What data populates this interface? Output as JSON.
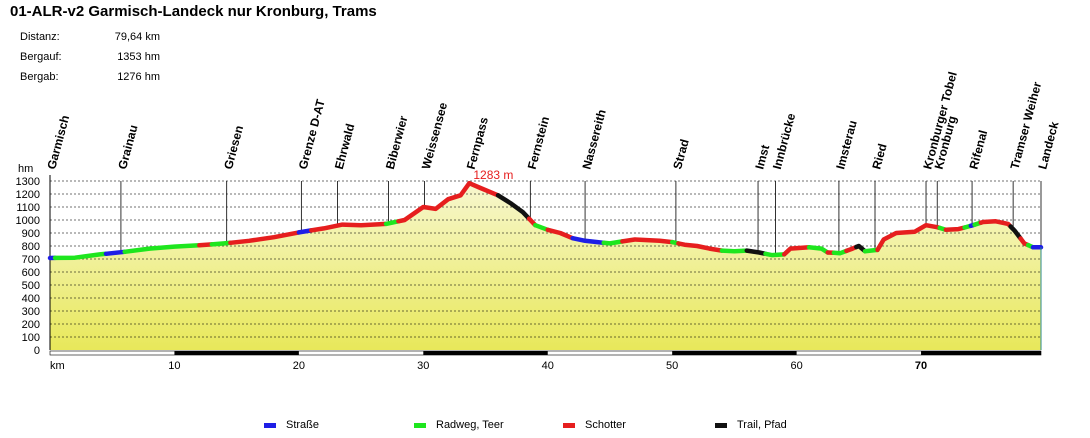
{
  "title": "01-ALR-v2 Garmisch-Landeck nur Kronburg, Trams",
  "stats": [
    {
      "label": "Distanz:",
      "value": "79,64 km"
    },
    {
      "label": "Bergauf:",
      "value": "1353 hm"
    },
    {
      "label": "Bergab:",
      "value": "1276 hm"
    }
  ],
  "colors": {
    "Straße": "#1e1ee6",
    "Radweg, Teer": "#1ee61e",
    "Schotter": "#e61e1e",
    "Trail, Pfad": "#111111",
    "fill_top": "#f7f7cf",
    "fill_bottom": "#e8e85a",
    "peak_label": "#e61e1e"
  },
  "chart_data": {
    "type": "area",
    "xlabel": "km",
    "ylabel": "hm",
    "xlim": [
      0,
      79.64
    ],
    "ylim": [
      0,
      1300
    ],
    "x_ticks": [
      10,
      20,
      30,
      40,
      50,
      60,
      70
    ],
    "y_ticks": [
      0,
      100,
      200,
      300,
      400,
      500,
      600,
      700,
      800,
      900,
      1000,
      1100,
      1200,
      1300
    ],
    "grid": true,
    "peak_annotation": {
      "text": "1283 m",
      "x": 33.7,
      "y": 1283
    },
    "waypoints": [
      {
        "name": "Garmisch",
        "km": 0
      },
      {
        "name": "Grainau",
        "km": 5.7
      },
      {
        "name": "Griesen",
        "km": 14.2
      },
      {
        "name": "Grenze D-AT",
        "km": 20.2
      },
      {
        "name": "Ehrwald",
        "km": 23.1
      },
      {
        "name": "Biberwier",
        "km": 27.2
      },
      {
        "name": "Weissensee",
        "km": 30.1
      },
      {
        "name": "Fernpass",
        "km": 33.7
      },
      {
        "name": "Fernstein",
        "km": 38.6
      },
      {
        "name": "Nassereith",
        "km": 43.0
      },
      {
        "name": "Strad",
        "km": 50.3
      },
      {
        "name": "Imst",
        "km": 56.9
      },
      {
        "name": "Innbrücke",
        "km": 58.3
      },
      {
        "name": "Imsterau",
        "km": 63.4
      },
      {
        "name": "Ried",
        "km": 66.3
      },
      {
        "name": "Kronburger Tobel",
        "km": 70.4
      },
      {
        "name": "Kronburg",
        "km": 71.3
      },
      {
        "name": "Rifenal",
        "km": 74.1
      },
      {
        "name": "Tramser Weiher",
        "km": 77.4
      },
      {
        "name": "Landeck",
        "km": 79.64
      }
    ],
    "profile": [
      [
        0,
        708
      ],
      [
        2,
        710
      ],
      [
        4,
        735
      ],
      [
        6,
        755
      ],
      [
        8,
        780
      ],
      [
        10,
        795
      ],
      [
        12,
        805
      ],
      [
        14,
        820
      ],
      [
        16,
        840
      ],
      [
        18,
        868
      ],
      [
        20,
        905
      ],
      [
        22,
        935
      ],
      [
        23.5,
        965
      ],
      [
        25,
        960
      ],
      [
        27,
        970
      ],
      [
        28.5,
        1000
      ],
      [
        30,
        1100
      ],
      [
        31,
        1085
      ],
      [
        32,
        1160
      ],
      [
        33,
        1190
      ],
      [
        33.7,
        1283
      ],
      [
        34.5,
        1250
      ],
      [
        36,
        1190
      ],
      [
        37,
        1130
      ],
      [
        38,
        1060
      ],
      [
        39,
        960
      ],
      [
        40,
        925
      ],
      [
        41,
        900
      ],
      [
        42,
        860
      ],
      [
        43,
        840
      ],
      [
        44,
        830
      ],
      [
        45,
        820
      ],
      [
        46,
        835
      ],
      [
        47,
        850
      ],
      [
        48,
        845
      ],
      [
        49,
        840
      ],
      [
        50,
        830
      ],
      [
        51,
        810
      ],
      [
        52,
        800
      ],
      [
        53,
        780
      ],
      [
        54,
        765
      ],
      [
        55,
        760
      ],
      [
        56,
        765
      ],
      [
        57,
        750
      ],
      [
        58,
        730
      ],
      [
        59,
        735
      ],
      [
        59.5,
        780
      ],
      [
        61,
        790
      ],
      [
        62,
        780
      ],
      [
        62.5,
        750
      ],
      [
        63.5,
        745
      ],
      [
        64.5,
        780
      ],
      [
        65,
        800
      ],
      [
        65.5,
        760
      ],
      [
        66.5,
        770
      ],
      [
        67,
        850
      ],
      [
        68,
        900
      ],
      [
        69.5,
        910
      ],
      [
        70.4,
        960
      ],
      [
        71.3,
        945
      ],
      [
        72,
        925
      ],
      [
        73,
        930
      ],
      [
        74,
        955
      ],
      [
        75,
        985
      ],
      [
        76,
        990
      ],
      [
        77,
        970
      ],
      [
        77.5,
        920
      ],
      [
        78.3,
        820
      ],
      [
        79,
        790
      ],
      [
        79.64,
        790
      ]
    ],
    "surface_segments": [
      {
        "type": "Straße",
        "from": 0,
        "to": 0.4
      },
      {
        "type": "Radweg, Teer",
        "from": 0.4,
        "to": 4.5
      },
      {
        "type": "Straße",
        "from": 4.5,
        "to": 6
      },
      {
        "type": "Radweg, Teer",
        "from": 6,
        "to": 12
      },
      {
        "type": "Schotter",
        "from": 12,
        "to": 13
      },
      {
        "type": "Radweg, Teer",
        "from": 13,
        "to": 14.5
      },
      {
        "type": "Schotter",
        "from": 14.5,
        "to": 20
      },
      {
        "type": "Straße",
        "from": 20,
        "to": 21
      },
      {
        "type": "Schotter",
        "from": 21,
        "to": 27
      },
      {
        "type": "Radweg, Teer",
        "from": 27,
        "to": 28
      },
      {
        "type": "Schotter",
        "from": 28,
        "to": 36
      },
      {
        "type": "Trail, Pfad",
        "from": 36,
        "to": 38.5
      },
      {
        "type": "Schotter",
        "from": 38.5,
        "to": 39
      },
      {
        "type": "Radweg, Teer",
        "from": 39,
        "to": 40
      },
      {
        "type": "Schotter",
        "from": 40,
        "to": 42
      },
      {
        "type": "Straße",
        "from": 42,
        "to": 44.5
      },
      {
        "type": "Radweg, Teer",
        "from": 44.5,
        "to": 46
      },
      {
        "type": "Schotter",
        "from": 46,
        "to": 50
      },
      {
        "type": "Radweg, Teer",
        "from": 50,
        "to": 50.5
      },
      {
        "type": "Schotter",
        "from": 50.5,
        "to": 54
      },
      {
        "type": "Radweg, Teer",
        "from": 54,
        "to": 56
      },
      {
        "type": "Trail, Pfad",
        "from": 56,
        "to": 57.5
      },
      {
        "type": "Radweg, Teer",
        "from": 57.5,
        "to": 59
      },
      {
        "type": "Schotter",
        "from": 59,
        "to": 61
      },
      {
        "type": "Radweg, Teer",
        "from": 61,
        "to": 62.5
      },
      {
        "type": "Schotter",
        "from": 62.5,
        "to": 63
      },
      {
        "type": "Radweg, Teer",
        "from": 63,
        "to": 64
      },
      {
        "type": "Schotter",
        "from": 64,
        "to": 64.8
      },
      {
        "type": "Trail, Pfad",
        "from": 64.8,
        "to": 65.5
      },
      {
        "type": "Radweg, Teer",
        "from": 65.5,
        "to": 66.5
      },
      {
        "type": "Schotter",
        "from": 66.5,
        "to": 71.5
      },
      {
        "type": "Radweg, Teer",
        "from": 71.5,
        "to": 72
      },
      {
        "type": "Schotter",
        "from": 72,
        "to": 73.5
      },
      {
        "type": "Radweg, Teer",
        "from": 73.5,
        "to": 74
      },
      {
        "type": "Straße",
        "from": 74,
        "to": 74.3
      },
      {
        "type": "Radweg, Teer",
        "from": 74.3,
        "to": 74.8
      },
      {
        "type": "Schotter",
        "from": 74.8,
        "to": 77.2
      },
      {
        "type": "Trail, Pfad",
        "from": 77.2,
        "to": 78
      },
      {
        "type": "Schotter",
        "from": 78,
        "to": 78.6
      },
      {
        "type": "Radweg, Teer",
        "from": 78.6,
        "to": 79
      },
      {
        "type": "Straße",
        "from": 79,
        "to": 79.64
      }
    ],
    "legend": [
      "Straße",
      "Radweg, Teer",
      "Schotter",
      "Trail, Pfad"
    ]
  }
}
